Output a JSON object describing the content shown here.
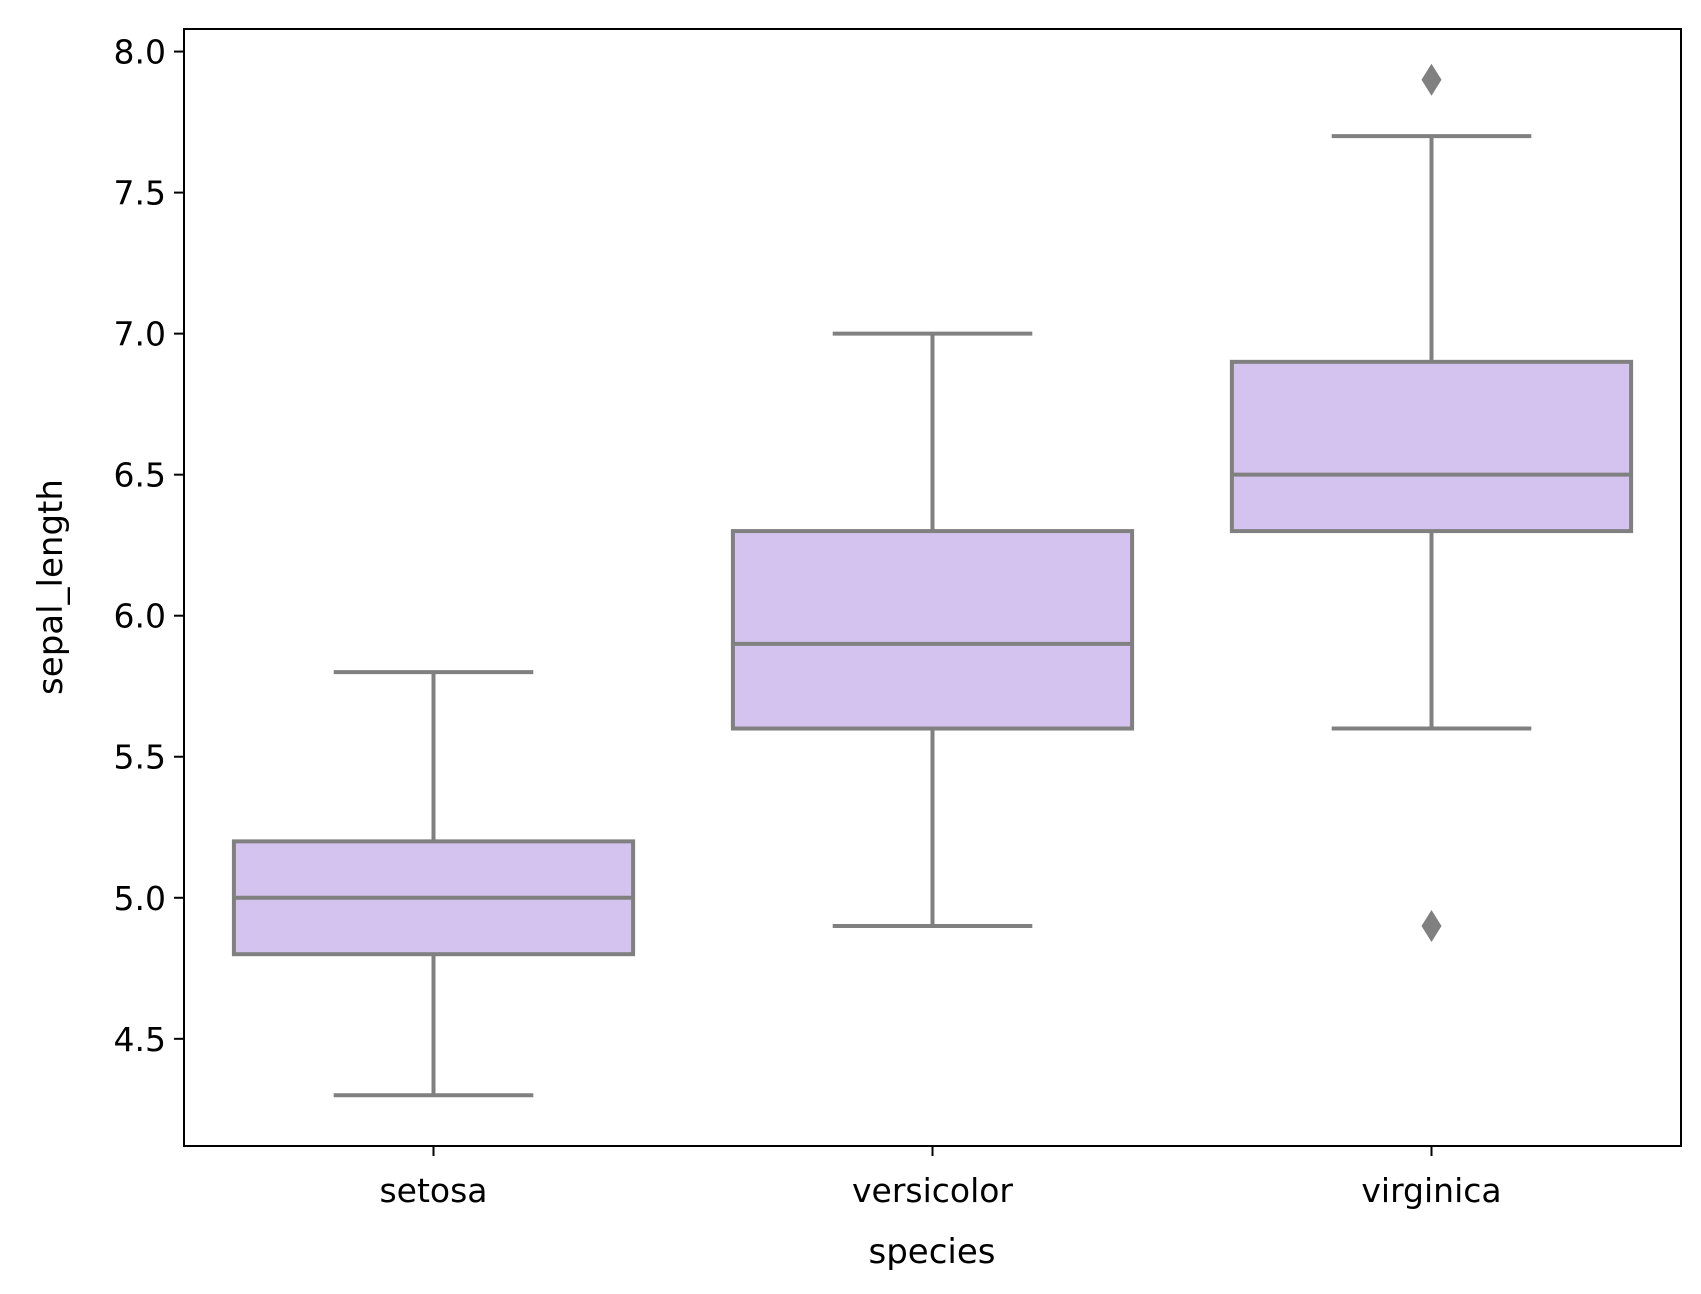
{
  "chart_data": {
    "type": "box",
    "title": "",
    "xlabel": "species",
    "ylabel": "sepal_length",
    "categories": [
      "setosa",
      "versicolor",
      "virginica"
    ],
    "boxes": [
      {
        "category": "setosa",
        "whisker_low": 4.3,
        "q1": 4.8,
        "median": 5.0,
        "q3": 5.2,
        "whisker_high": 5.8,
        "outliers": []
      },
      {
        "category": "versicolor",
        "whisker_low": 4.9,
        "q1": 5.6,
        "median": 5.9,
        "q3": 6.3,
        "whisker_high": 7.0,
        "outliers": []
      },
      {
        "category": "virginica",
        "whisker_low": 5.6,
        "q1": 6.3,
        "median": 6.5,
        "q3": 6.9,
        "whisker_high": 7.7,
        "outliers": [
          4.9,
          7.9
        ]
      }
    ],
    "ylim": [
      4.12,
      8.08
    ],
    "yticks": [
      4.5,
      5.0,
      5.5,
      6.0,
      6.5,
      7.0,
      7.5,
      8.0
    ],
    "ytick_labels": [
      "4.5",
      "5.0",
      "5.5",
      "6.0",
      "6.5",
      "7.0",
      "7.5",
      "8.0"
    ],
    "grid": false,
    "legend": "none",
    "colors": {
      "box_fill": "#d5c3ef",
      "line": "#808080",
      "axes": "#000000"
    }
  }
}
